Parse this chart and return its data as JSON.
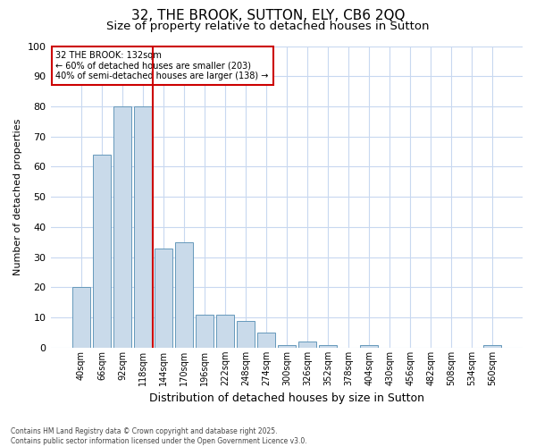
{
  "title": "32, THE BROOK, SUTTON, ELY, CB6 2QQ",
  "subtitle": "Size of property relative to detached houses in Sutton",
  "xlabel": "Distribution of detached houses by size in Sutton",
  "ylabel": "Number of detached properties",
  "categories": [
    "40sqm",
    "66sqm",
    "92sqm",
    "118sqm",
    "144sqm",
    "170sqm",
    "196sqm",
    "222sqm",
    "248sqm",
    "274sqm",
    "300sqm",
    "326sqm",
    "352sqm",
    "378sqm",
    "404sqm",
    "430sqm",
    "456sqm",
    "482sqm",
    "508sqm",
    "534sqm",
    "560sqm"
  ],
  "values": [
    20,
    64,
    80,
    80,
    33,
    35,
    11,
    11,
    9,
    5,
    1,
    2,
    1,
    0,
    1,
    0,
    0,
    0,
    0,
    0,
    1
  ],
  "bar_color": "#c9daea",
  "bar_edge_color": "#6699bb",
  "vline_x": 3.5,
  "vline_color": "#cc0000",
  "annotation_text": "32 THE BROOK: 132sqm\n← 60% of detached houses are smaller (203)\n40% of semi-detached houses are larger (138) →",
  "annotation_box_color": "#ffffff",
  "annotation_box_edge": "#cc0000",
  "background_color": "#ffffff",
  "grid_color": "#c8d8f0",
  "footnote": "Contains HM Land Registry data © Crown copyright and database right 2025.\nContains public sector information licensed under the Open Government Licence v3.0.",
  "ylim": [
    0,
    100
  ],
  "yticks": [
    0,
    10,
    20,
    30,
    40,
    50,
    60,
    70,
    80,
    90,
    100
  ],
  "title_fontsize": 11,
  "subtitle_fontsize": 9.5,
  "ylabel_fontsize": 8,
  "xlabel_fontsize": 9
}
